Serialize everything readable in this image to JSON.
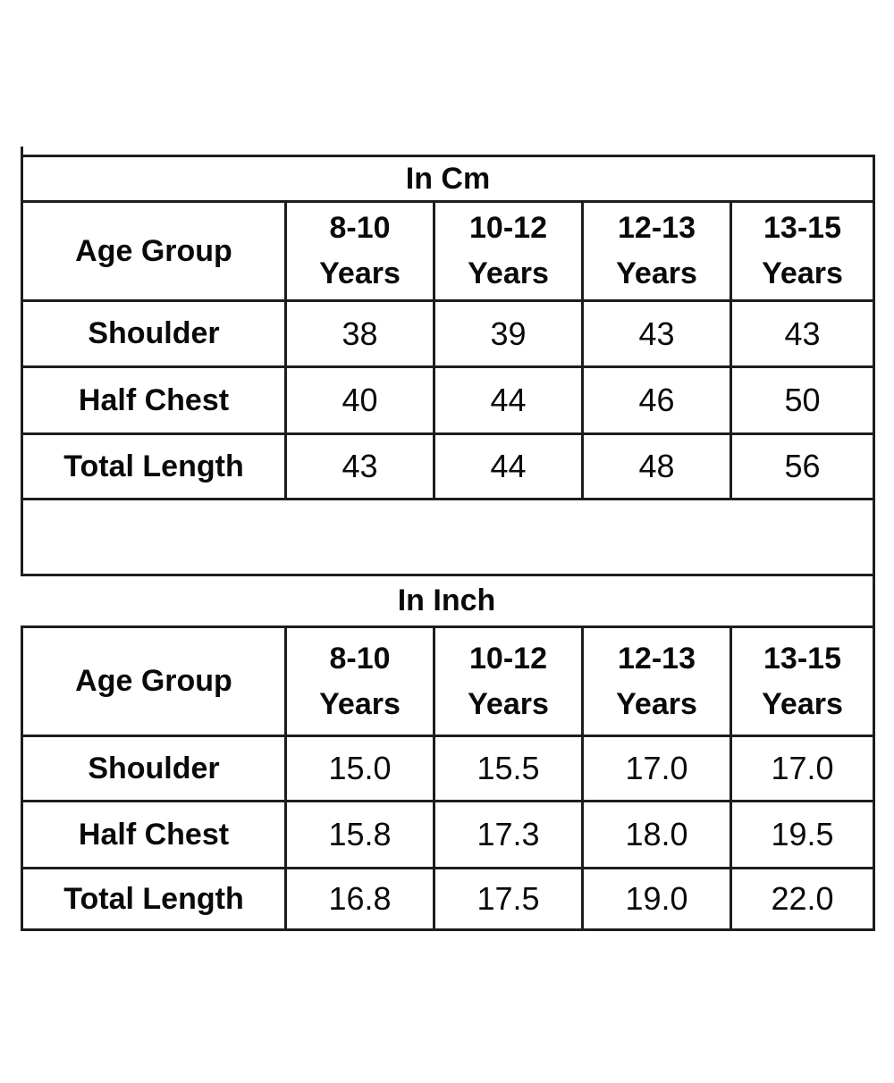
{
  "chart_data": [
    {
      "type": "table",
      "title": "In Cm",
      "columns": [
        "Age Group",
        "8-10 Years",
        "10-12 Years",
        "12-13 Years",
        "13-15 Years"
      ],
      "rows": [
        [
          "Shoulder",
          "38",
          "39",
          "43",
          "43"
        ],
        [
          "Half Chest",
          "40",
          "44",
          "46",
          "50"
        ],
        [
          "Total Length",
          "43",
          "44",
          "48",
          "56"
        ]
      ]
    },
    {
      "type": "table",
      "title": "In Inch",
      "columns": [
        "Age Group",
        "8-10 Years",
        "10-12 Years",
        "12-13 Years",
        "13-15 Years"
      ],
      "rows": [
        [
          "Shoulder",
          "15.0",
          "15.5",
          "17.0",
          "17.0"
        ],
        [
          "Half Chest",
          "15.8",
          "17.3",
          "18.0",
          "19.5"
        ],
        [
          "Total Length",
          "16.8",
          "17.5",
          "19.0",
          "22.0"
        ]
      ]
    }
  ],
  "styles": {
    "border_color": "#1d1d1d",
    "text_color": "#0a0a0a",
    "background": "#ffffff"
  }
}
